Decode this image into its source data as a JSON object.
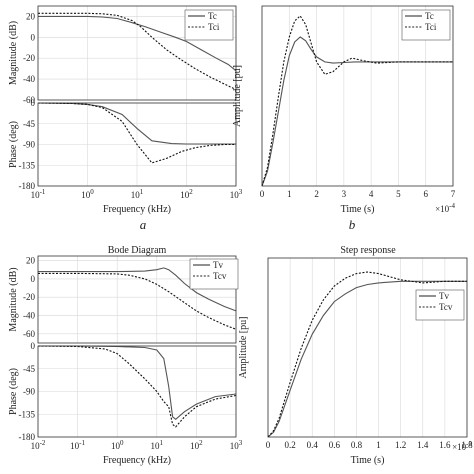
{
  "captions": {
    "a": "a",
    "b": "b"
  },
  "chart_data": [
    {
      "id": "bode_current",
      "type": "line",
      "title": "",
      "xlabel": "Frequency (kHz)",
      "xscale": "log",
      "xlim": [
        0.1,
        1000
      ],
      "xticks": [
        0.1,
        1,
        10,
        100,
        1000
      ],
      "xtick_labels": [
        [
          "10",
          "-1"
        ],
        [
          "10",
          "0"
        ],
        [
          "10",
          "1"
        ],
        [
          "10",
          "2"
        ],
        [
          "10",
          "3"
        ]
      ],
      "legend": "top-right",
      "grid": true,
      "panels": [
        {
          "ylabel": "Magnitude (dB)",
          "ylim": [
            -60,
            30
          ],
          "yticks": [
            -60,
            -40,
            -20,
            0,
            20
          ],
          "series": [
            {
              "name": "Tc",
              "style": "solid",
              "x": [
                0.1,
                0.3,
                1,
                2,
                4,
                8,
                15,
                30,
                60,
                100,
                200,
                400,
                700,
                1000
              ],
              "y": [
                20,
                20,
                20,
                19.5,
                18,
                14,
                10,
                5,
                0,
                -4,
                -12,
                -20,
                -26,
                -32
              ]
            },
            {
              "name": "Tci",
              "style": "dotted",
              "x": [
                0.1,
                0.3,
                1,
                2,
                4,
                8,
                12,
                20,
                40,
                70,
                150,
                300,
                600,
                1000
              ],
              "y": [
                23,
                23,
                23,
                22.5,
                21,
                16,
                10,
                0,
                -12,
                -20,
                -30,
                -38,
                -45,
                -50
              ]
            }
          ]
        },
        {
          "ylabel": "Phase (deg)",
          "ylim": [
            -180,
            0
          ],
          "yticks": [
            -180,
            -135,
            -90,
            -45,
            0
          ],
          "series": [
            {
              "name": "Tc",
              "style": "solid",
              "x": [
                0.1,
                0.5,
                1,
                2,
                5,
                10,
                20,
                50,
                100,
                200,
                500,
                1000
              ],
              "y": [
                0,
                -1,
                -3,
                -8,
                -25,
                -55,
                -82,
                -88,
                -89,
                -89,
                -89,
                -89
              ]
            },
            {
              "name": "Tci",
              "style": "dotted",
              "x": [
                0.1,
                0.5,
                1,
                2,
                5,
                10,
                20,
                40,
                80,
                150,
                300,
                600,
                1000
              ],
              "y": [
                0,
                -1,
                -3,
                -10,
                -40,
                -90,
                -130,
                -120,
                -105,
                -97,
                -92,
                -90,
                -90
              ]
            }
          ]
        }
      ]
    },
    {
      "id": "step_current",
      "type": "line",
      "title": "",
      "xlabel": "Time (s)",
      "ylabel": "Amplitude [pu]",
      "xlim": [
        0,
        7
      ],
      "xticks": [
        0,
        1,
        2,
        3,
        4,
        5,
        6,
        7
      ],
      "xscale_note": [
        "×10",
        "-4"
      ],
      "ylim": [
        0,
        1.45
      ],
      "legend": "top-right",
      "grid": true,
      "series": [
        {
          "name": "Tc",
          "style": "solid",
          "x": [
            0,
            0.2,
            0.4,
            0.6,
            0.8,
            1.0,
            1.2,
            1.4,
            1.6,
            1.8,
            2.0,
            2.3,
            2.6,
            3.0,
            3.4,
            4.0,
            5.0,
            6.0,
            7.0
          ],
          "y": [
            0,
            0.12,
            0.35,
            0.6,
            0.85,
            1.05,
            1.16,
            1.2,
            1.17,
            1.1,
            1.04,
            1.0,
            0.99,
            0.995,
            1.0,
            1.0,
            1.0,
            1.0,
            1.0
          ]
        },
        {
          "name": "Tci",
          "style": "dotted",
          "x": [
            0,
            0.2,
            0.4,
            0.6,
            0.8,
            1.0,
            1.2,
            1.4,
            1.6,
            1.8,
            2.0,
            2.3,
            2.6,
            3.0,
            3.3,
            3.7,
            4.2,
            5.0,
            6.0,
            7.0
          ],
          "y": [
            0,
            0.15,
            0.42,
            0.72,
            1.0,
            1.2,
            1.33,
            1.37,
            1.3,
            1.15,
            1.0,
            0.9,
            0.92,
            1.0,
            1.03,
            1.01,
            0.99,
            1.0,
            1.0,
            1.0
          ]
        }
      ]
    },
    {
      "id": "bode_voltage",
      "type": "line",
      "title": "Bode Diagram",
      "xlabel": "Frequency (kHz)",
      "xscale": "log",
      "xlim": [
        0.01,
        1000
      ],
      "xticks": [
        0.01,
        0.1,
        1,
        10,
        100,
        1000
      ],
      "xtick_labels": [
        [
          "10",
          "-2"
        ],
        [
          "10",
          "-1"
        ],
        [
          "10",
          "0"
        ],
        [
          "10",
          "1"
        ],
        [
          "10",
          "2"
        ],
        [
          "10",
          "3"
        ]
      ],
      "legend": "top-right",
      "grid": true,
      "panels": [
        {
          "ylabel": "Magnitude (dB)",
          "ylim": [
            -70,
            25
          ],
          "yticks": [
            -60,
            -40,
            -20,
            0,
            20
          ],
          "series": [
            {
              "name": "Tv",
              "style": "solid",
              "x": [
                0.01,
                0.1,
                1,
                5,
                10,
                15,
                20,
                30,
                50,
                100,
                200,
                500,
                1000
              ],
              "y": [
                8,
                8,
                8,
                8.5,
                10,
                12,
                10,
                4,
                -5,
                -15,
                -22,
                -30,
                -35
              ]
            },
            {
              "name": "Tcv",
              "style": "dotted",
              "x": [
                0.01,
                0.1,
                1,
                2,
                5,
                10,
                20,
                50,
                100,
                200,
                500,
                1000
              ],
              "y": [
                6,
                6,
                5.5,
                4,
                0,
                -6,
                -14,
                -26,
                -35,
                -42,
                -50,
                -55
              ]
            }
          ]
        },
        {
          "ylabel": "Phase (deg)",
          "ylim": [
            -180,
            0
          ],
          "yticks": [
            -180,
            -135,
            -90,
            -45,
            0
          ],
          "series": [
            {
              "name": "Tv",
              "style": "solid",
              "x": [
                0.01,
                0.1,
                1,
                5,
                10,
                15,
                20,
                25,
                30,
                50,
                100,
                300,
                1000
              ],
              "y": [
                0,
                0,
                -1,
                -3,
                -8,
                -25,
                -80,
                -140,
                -145,
                -130,
                -115,
                -100,
                -95
              ]
            },
            {
              "name": "Tcv",
              "style": "dotted",
              "x": [
                0.01,
                0.1,
                0.5,
                1,
                2,
                5,
                10,
                15,
                20,
                25,
                30,
                50,
                100,
                300,
                1000
              ],
              "y": [
                0,
                -1,
                -6,
                -15,
                -35,
                -65,
                -90,
                -110,
                -120,
                -155,
                -160,
                -140,
                -120,
                -105,
                -98
              ]
            }
          ]
        }
      ]
    },
    {
      "id": "step_voltage",
      "type": "line",
      "title": "Step response",
      "xlabel": "Time (s)",
      "ylabel": "Amplitude [pu]",
      "xlim": [
        0,
        1.8
      ],
      "xticks": [
        0,
        0.2,
        0.4,
        0.6,
        0.8,
        1,
        1.2,
        1.4,
        1.6,
        1.8
      ],
      "xscale_note": [
        "×10",
        "-3"
      ],
      "ylim": [
        0,
        1.15
      ],
      "legend": "top-right",
      "grid": true,
      "series": [
        {
          "name": "Tv",
          "style": "solid",
          "x": [
            0,
            0.05,
            0.1,
            0.2,
            0.3,
            0.4,
            0.5,
            0.6,
            0.7,
            0.8,
            0.9,
            1.0,
            1.2,
            1.4,
            1.6,
            1.8
          ],
          "y": [
            0,
            0.03,
            0.1,
            0.3,
            0.5,
            0.66,
            0.78,
            0.87,
            0.92,
            0.96,
            0.98,
            0.99,
            1.0,
            1.0,
            1.0,
            1.0
          ]
        },
        {
          "name": "Tcv",
          "style": "dotted",
          "x": [
            0,
            0.05,
            0.1,
            0.2,
            0.3,
            0.4,
            0.5,
            0.6,
            0.7,
            0.8,
            0.9,
            1.0,
            1.1,
            1.2,
            1.4,
            1.6,
            1.8
          ],
          "y": [
            0,
            0.04,
            0.12,
            0.35,
            0.57,
            0.75,
            0.88,
            0.97,
            1.02,
            1.05,
            1.06,
            1.05,
            1.03,
            1.01,
            0.99,
            1.0,
            1.0
          ]
        }
      ]
    }
  ]
}
